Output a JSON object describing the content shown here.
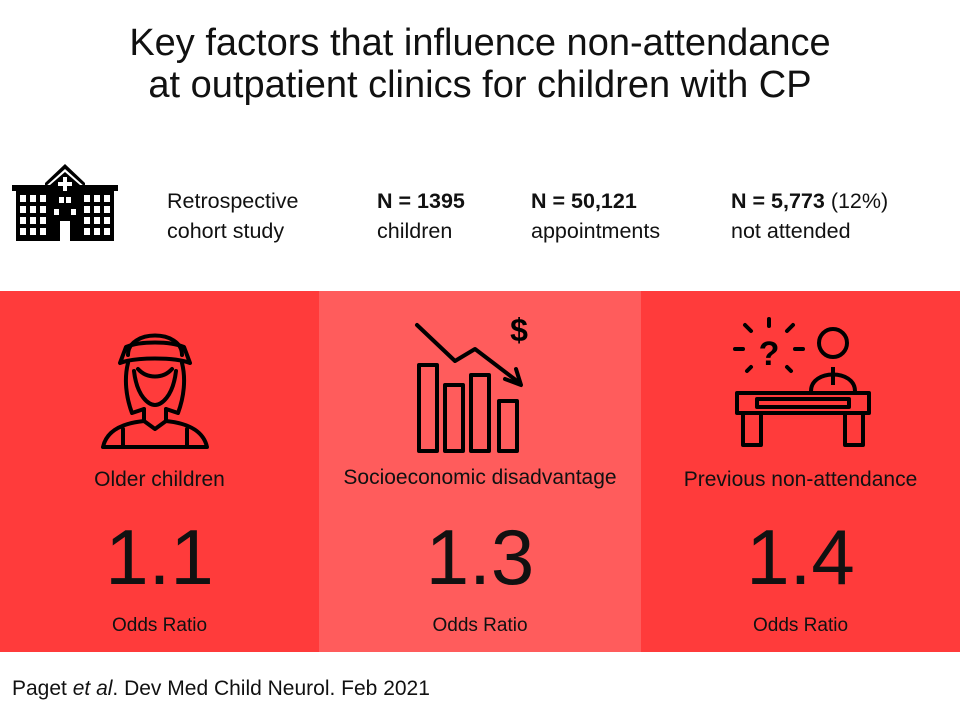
{
  "title": {
    "line1": "Key factors that influence non-attendance",
    "line2": "at outpatient clinics for children with CP"
  },
  "stats": {
    "design": {
      "line1": "Retrospective",
      "line2": "cohort study"
    },
    "children": {
      "value": "N = 1395",
      "label": "children"
    },
    "appointments": {
      "value": "N = 50,121",
      "label": "appointments"
    },
    "not_attended": {
      "value": "N = 5,773",
      "pct": " (12%)",
      "label": "not attended"
    }
  },
  "factors": [
    {
      "label": "Older children",
      "odds_ratio": "1.1",
      "metric": "Odds Ratio",
      "icon": "teen-person-icon",
      "color": "#ff3b3b"
    },
    {
      "label": "Socioeconomic disadvantage",
      "odds_ratio": "1.3",
      "metric": "Odds Ratio",
      "icon": "declining-chart-dollar-icon",
      "color": "#ff5c5c"
    },
    {
      "label": "Previous non-attendance",
      "odds_ratio": "1.4",
      "metric": "Odds Ratio",
      "icon": "question-desk-icon",
      "color": "#ff3b3b"
    }
  ],
  "citation": {
    "author": "Paget ",
    "etal": "et al",
    "rest": ". Dev Med Child Neurol. Feb 2021"
  },
  "icons": {
    "header": "hospital-icon"
  },
  "colors": {
    "panel_dark": "#ff3b3b",
    "panel_light": "#ff5c5c",
    "text": "#111111"
  }
}
